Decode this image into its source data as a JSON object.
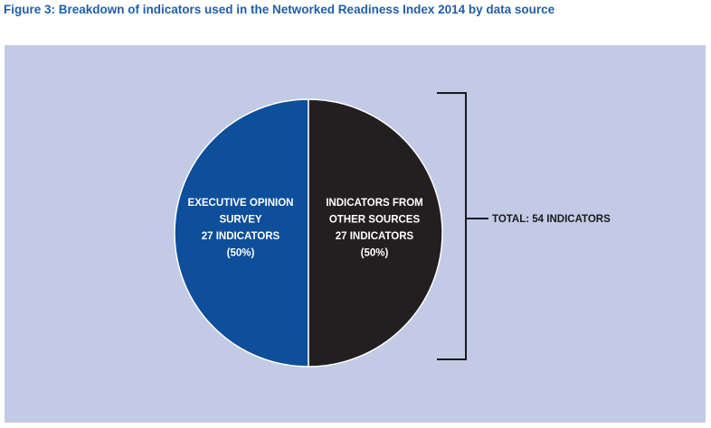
{
  "figure": {
    "title": "Figure 3: Breakdown of indicators used in the Networked Readiness Index 2014 by data source"
  },
  "colors": {
    "background": "#c3cae6",
    "title": "#1f5fa8",
    "bracket": "#1a1a1a"
  },
  "chart_data": {
    "type": "pie",
    "title": "Figure 3: Breakdown of indicators used in the Networked Readiness Index 2014 by data source",
    "slices": [
      {
        "label_lines": [
          "EXECUTIVE OPINION",
          "SURVEY",
          "27 INDICATORS",
          "(50%)"
        ],
        "value": 27,
        "percent": 50,
        "color": "#0d4f9a"
      },
      {
        "label_lines": [
          "INDICATORS FROM",
          "OTHER SOURCES",
          "27 INDICATORS",
          "(50%)"
        ],
        "value": 27,
        "percent": 50,
        "color": "#231f20"
      }
    ],
    "total": {
      "label": "TOTAL: 54 INDICATORS",
      "value": 54
    }
  }
}
